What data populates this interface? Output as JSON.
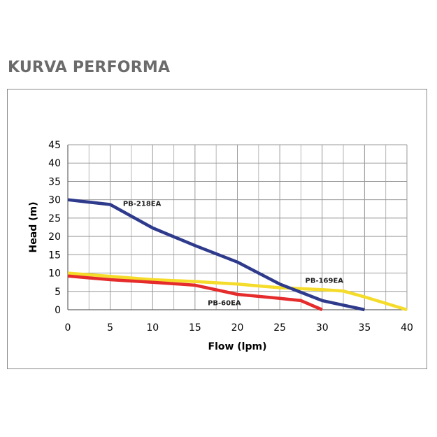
{
  "page": {
    "title": "KURVA PERFORMA"
  },
  "chart_data": {
    "type": "line",
    "title": "",
    "xlabel": "Flow (lpm)",
    "ylabel": "Head (m)",
    "xlim": [
      0,
      40
    ],
    "ylim": [
      0,
      45
    ],
    "xticks": [
      0,
      5,
      10,
      15,
      20,
      25,
      30,
      35,
      40
    ],
    "yticks": [
      0,
      5,
      10,
      15,
      20,
      25,
      30,
      35,
      40,
      45
    ],
    "grid": true,
    "legend": "inline labels",
    "series": [
      {
        "name": "PB-218EA",
        "color": "#2e3a8c",
        "label_at": [
          6.5,
          28.3
        ],
        "points": [
          [
            0,
            30
          ],
          [
            5,
            28.7
          ],
          [
            10,
            22.3
          ],
          [
            15,
            17.5
          ],
          [
            20,
            13
          ],
          [
            25,
            7
          ],
          [
            30,
            2.5
          ],
          [
            35,
            0
          ]
        ]
      },
      {
        "name": "PB-169EA",
        "color": "#f5dc2a",
        "label_at": [
          28,
          7.3
        ],
        "points": [
          [
            0,
            10
          ],
          [
            5,
            9.1
          ],
          [
            10,
            8.2
          ],
          [
            15,
            7.7
          ],
          [
            20,
            7
          ],
          [
            25,
            6
          ],
          [
            30,
            5.5
          ],
          [
            32.5,
            5.1
          ],
          [
            35,
            3.5
          ],
          [
            40,
            0
          ]
        ]
      },
      {
        "name": "PB-60EA",
        "color": "#e52b2b",
        "label_at": [
          16.5,
          1.2
        ],
        "points": [
          [
            0,
            9.2
          ],
          [
            5,
            8.2
          ],
          [
            10,
            7.5
          ],
          [
            15,
            6.7
          ],
          [
            20,
            4.2
          ],
          [
            25,
            3.1
          ],
          [
            27.5,
            2.5
          ],
          [
            30,
            0
          ]
        ]
      }
    ]
  }
}
